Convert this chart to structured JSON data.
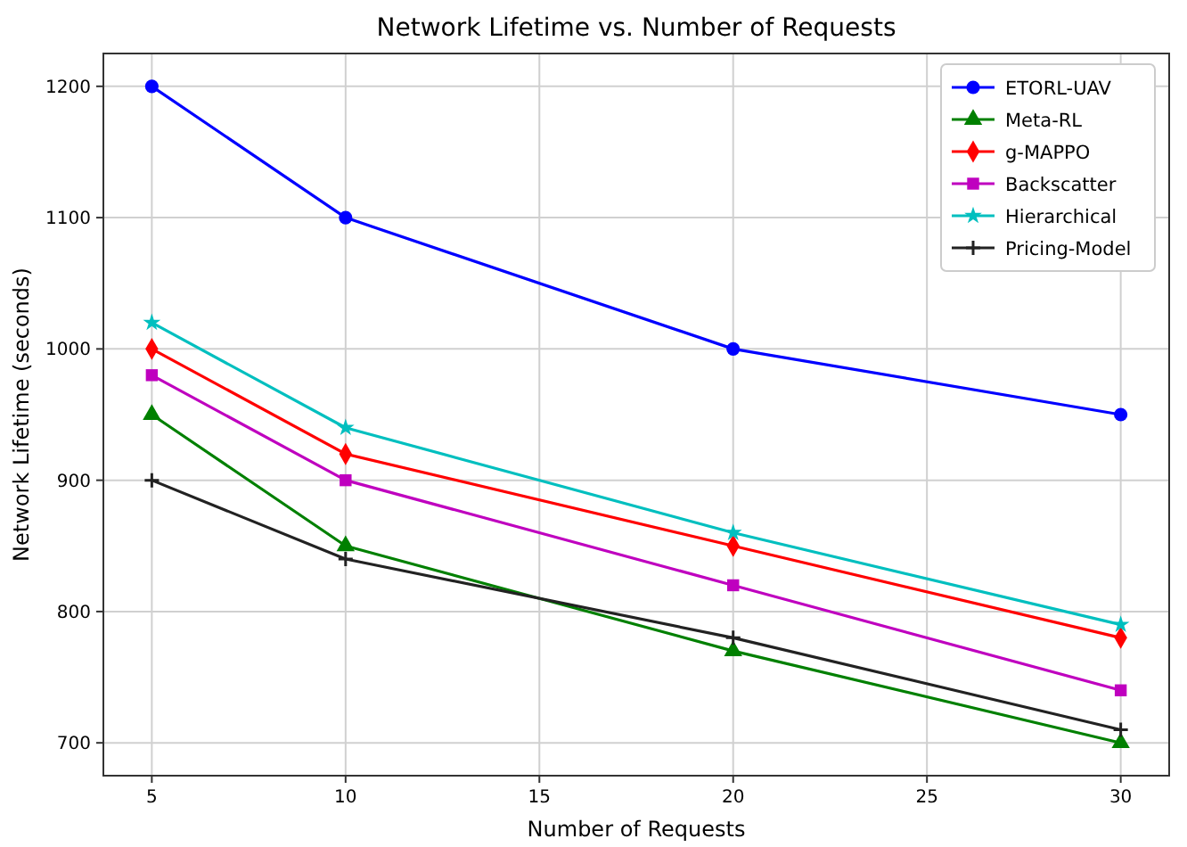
{
  "chart_data": {
    "type": "line",
    "title": "Network Lifetime vs. Number of Requests",
    "xlabel": "Number of Requests",
    "ylabel": "Network Lifetime (seconds)",
    "x": [
      5,
      10,
      20,
      30
    ],
    "series": [
      {
        "name": "ETORL-UAV",
        "color": "#0000ff",
        "marker": "circle",
        "values": [
          1200,
          1100,
          1000,
          950
        ]
      },
      {
        "name": "Meta-RL",
        "color": "#008000",
        "marker": "triangle",
        "values": [
          950,
          850,
          770,
          700
        ]
      },
      {
        "name": "g-MAPPO",
        "color": "#ff0000",
        "marker": "diamond",
        "values": [
          1000,
          920,
          850,
          780
        ]
      },
      {
        "name": "Backscatter",
        "color": "#bf00bf",
        "marker": "square",
        "values": [
          980,
          900,
          820,
          740
        ]
      },
      {
        "name": "Hierarchical",
        "color": "#00bfbf",
        "marker": "star",
        "values": [
          1020,
          940,
          860,
          790
        ]
      },
      {
        "name": "Pricing-Model",
        "color": "#222222",
        "marker": "cross",
        "values": [
          900,
          840,
          780,
          710
        ]
      }
    ],
    "xlim": [
      3.75,
      31.25
    ],
    "xticks": [
      5,
      10,
      15,
      20,
      25,
      30
    ],
    "ylim": [
      675,
      1225
    ],
    "yticks": [
      700,
      800,
      900,
      1000,
      1100,
      1200
    ],
    "grid": true,
    "legend": "top right",
    "line_style": "solid"
  }
}
